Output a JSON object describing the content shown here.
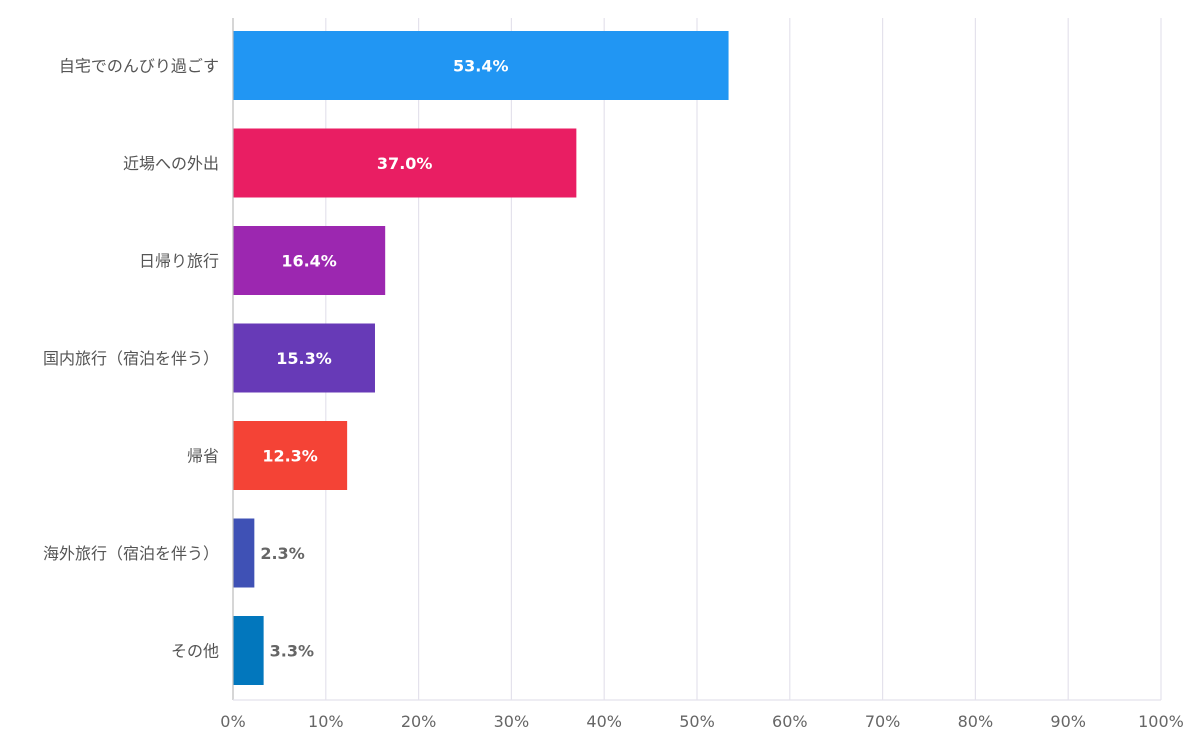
{
  "chart_data": {
    "type": "bar",
    "orientation": "horizontal",
    "categories": [
      "自宅でのんびり過ごす",
      "近場への外出",
      "日帰り旅行",
      "国内旅行（宿泊を伴う）",
      "帰省",
      "海外旅行（宿泊を伴う）",
      "その他"
    ],
    "values": [
      53.4,
      37.0,
      16.4,
      15.3,
      12.3,
      2.3,
      3.3
    ],
    "value_labels": [
      "53.4%",
      "37.0%",
      "16.4%",
      "15.3%",
      "12.3%",
      "2.3%",
      "3.3%"
    ],
    "colors": [
      "#2196f3",
      "#e91e63",
      "#9c27b0",
      "#673ab7",
      "#f44336",
      "#3f51b5",
      "#0277bd"
    ],
    "xlim": [
      0,
      100
    ],
    "x_ticks": [
      0,
      10,
      20,
      30,
      40,
      50,
      60,
      70,
      80,
      90,
      100
    ],
    "x_tick_labels": [
      "0%",
      "10%",
      "20%",
      "30%",
      "40%",
      "50%",
      "60%",
      "70%",
      "80%",
      "90%",
      "100%"
    ],
    "grid": true,
    "legend": "none",
    "title": "",
    "xlabel": "",
    "ylabel": ""
  }
}
